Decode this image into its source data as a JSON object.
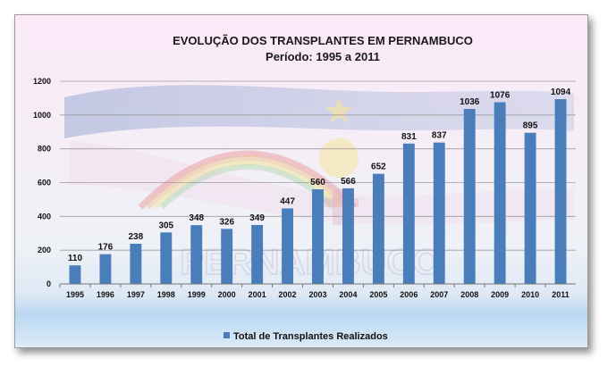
{
  "chart_data": {
    "type": "bar",
    "title": "EVOLUÇÃO DOS TRANSPLANTES EM PERNAMBUCO",
    "subtitle": "Período: 1995  a 2011",
    "categories": [
      "1995",
      "1996",
      "1997",
      "1998",
      "1999",
      "2000",
      "2001",
      "2002",
      "2003",
      "2004",
      "2005",
      "2006",
      "2007",
      "2008",
      "2009",
      "2010",
      "2011"
    ],
    "series": [
      {
        "name": "Total de Transplantes Realizados",
        "values": [
          110,
          176,
          238,
          305,
          348,
          326,
          349,
          447,
          560,
          566,
          652,
          831,
          837,
          1036,
          1076,
          895,
          1094
        ],
        "color": "#4a7ebb"
      }
    ],
    "ylim": [
      0,
      1200
    ],
    "yticks": [
      "0",
      "200",
      "400",
      "600",
      "800",
      "1000",
      "1200"
    ],
    "grid": true,
    "data_labels": true,
    "legend_position": "bottom",
    "background_watermark": "PERNAMBUCO"
  }
}
